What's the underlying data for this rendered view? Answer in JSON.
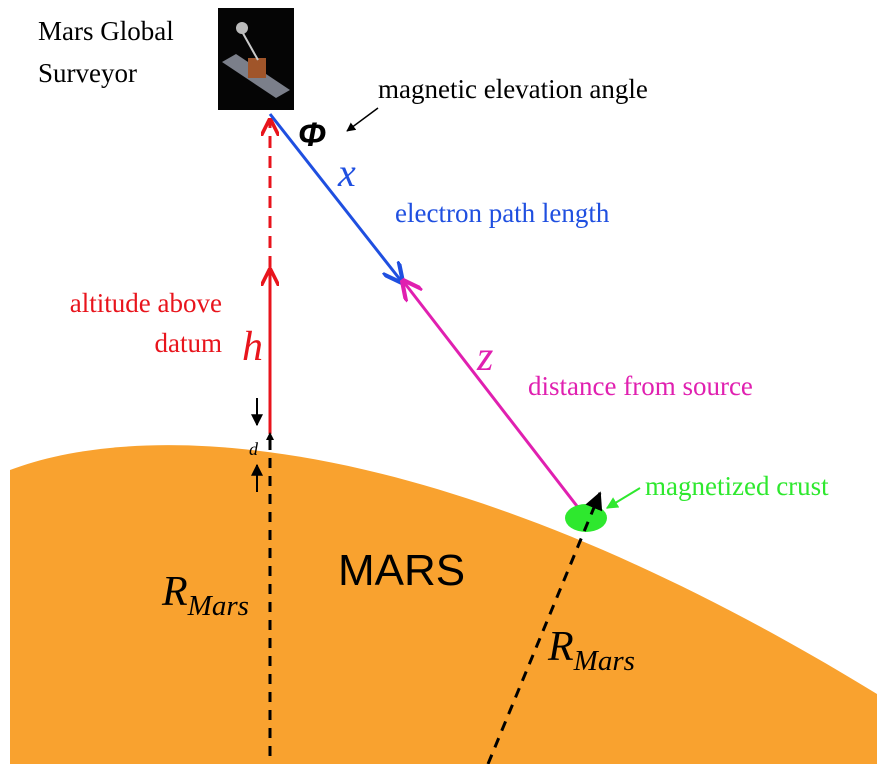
{
  "satellite": {
    "label_lines": [
      "Mars Global",
      "Surveyor"
    ]
  },
  "angle": {
    "symbol": "Φ",
    "label": "magnetic elevation angle"
  },
  "electron_path": {
    "symbol": "x",
    "label": "electron path length"
  },
  "altitude": {
    "symbol": "h",
    "label_lines": [
      "altitude above",
      "datum"
    ],
    "offset_symbol": "d"
  },
  "source_distance": {
    "symbol": "z",
    "label": "distance from source"
  },
  "crust": {
    "label": "magnetized crust"
  },
  "planet": {
    "label": "MARS",
    "radius_symbol": "R",
    "radius_subscript": "Mars"
  }
}
